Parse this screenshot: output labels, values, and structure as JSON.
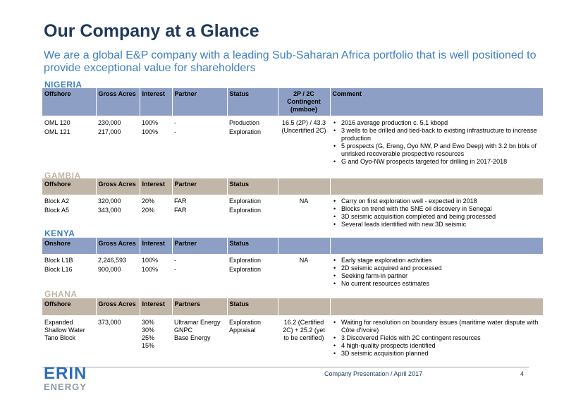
{
  "title": "Our Company at a Glance",
  "subtitle": "We are a global E&P company with a leading Sub-Saharan Africa portfolio that is well positioned to provide exceptional value for shareholders",
  "colors": {
    "title": "#1f3a5a",
    "subtitle": "#3f7fc0",
    "blue_header": "#8d9fc4",
    "tan_header": "#c2b6a9",
    "nigeria_label": "#3f7fc0",
    "gambia_label": "#c2b6a9",
    "kenya_label": "#3f7fc0",
    "ghana_label": "#c2b6a9"
  },
  "nigeria": {
    "label": "NIGERIA",
    "headers": [
      "Offshore",
      "Gross Acres",
      "Interest",
      "Partner",
      "Status",
      "2P / 2C Contingent (mmboe)",
      "Comment"
    ],
    "rows": [
      [
        "OML 120",
        "230,000",
        "100%",
        "-",
        "Production"
      ],
      [
        "OML 121",
        "217,000",
        "100%",
        "-",
        "Exploration"
      ]
    ],
    "contingent": "16.5 (2P) / 43.3 (Uncertified 2C)",
    "comments": [
      "2016 average production c. 5.1 kbopd",
      "3 wells to be drilled and tied-back to existing infrastructure to increase production",
      "5 prospects (G, Ereng, Oyo NW, P and Ewo Deep) with 3.2 bn bbls of unrisked recoverable prospective resources",
      "G and Oyo-NW prospects targeted for drilling in 2017-2018"
    ]
  },
  "gambia": {
    "label": "GAMBIA",
    "headers": [
      "Offshore",
      "Gross Acres",
      "Interest",
      "Partner",
      "Status",
      "",
      ""
    ],
    "rows": [
      [
        "Block A2",
        "320,000",
        "20%",
        "FAR",
        "Exploration"
      ],
      [
        "Block A5",
        "343,000",
        "20%",
        "FAR",
        "Exploration"
      ]
    ],
    "contingent": "NA",
    "comments": [
      "Carry on first exploration well - expected in 2018",
      "Blocks on trend with the SNE oil discovery in Senegal",
      "3D seismic acquisition completed and being processed",
      "Several leads identified with new 3D seismic"
    ]
  },
  "kenya": {
    "label": "KENYA",
    "headers": [
      "Onshore",
      "Gross Acres",
      "Interest",
      "Partner",
      "Status",
      "",
      ""
    ],
    "rows": [
      [
        "Block L1B",
        "2,246,593",
        "100%",
        "-",
        "Exploration"
      ],
      [
        "Block L16",
        "900,000",
        "100%",
        "-",
        "Exploration"
      ]
    ],
    "contingent": "NA",
    "comments": [
      "Early stage exploration activities",
      "2D seismic acquired and processed",
      "Seeking farm-in partner",
      "No current resources estimates"
    ]
  },
  "ghana": {
    "label": "GHANA",
    "headers": [
      "Offshore",
      "Gross Acres",
      "Interest",
      "Partners",
      "Status",
      "",
      ""
    ],
    "block_lines": [
      "Expanded",
      "Shallow Water",
      "Tano Block"
    ],
    "acres": "373,000",
    "interest_lines": [
      "30%",
      "30%",
      "25%",
      "15%"
    ],
    "partner_lines": [
      "Ultramar Energy",
      "GNPC",
      "Base Energy"
    ],
    "status_lines": [
      "Exploration",
      "Appraisal"
    ],
    "contingent": "16.2 (Certified 2C) + 25.2 (yet to be certified)",
    "comments": [
      "Waiting for resolution on boundary issues (maritime water dispute with Côte d'Ivoire)",
      "3 Discovered Fields with 2C contingent resources",
      "4 high-quality prospects identified",
      "3D seismic acquisition planned"
    ]
  },
  "footer": {
    "text": "Company Presentation / April 2017",
    "page": "4",
    "logo_top": "ERIN",
    "logo_bottom": "ENERGY"
  }
}
